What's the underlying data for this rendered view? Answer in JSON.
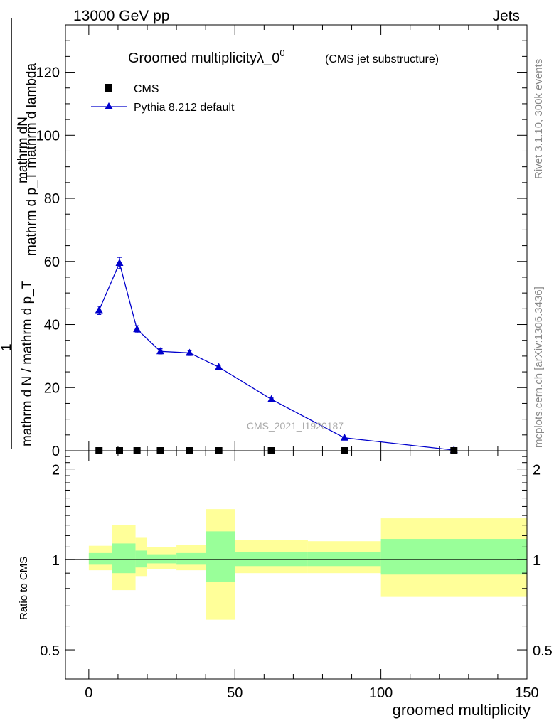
{
  "header": {
    "left": "13000 GeV pp",
    "right": "Jets"
  },
  "side_labels": {
    "rivet": "Rivet 3.1.10,  300k events",
    "mcplots": "mcplots.cern.ch [arXiv:1306.3436]"
  },
  "chart_data": [
    {
      "type": "line",
      "title": "Groomed multiplicityλ_0",
      "title_superscript": "0",
      "subtitle": "(CMS jet substructure)",
      "xlabel": "",
      "ylabel_numerator": "mathrm dN",
      "ylabel_mid": "mathrm d p_T mathrm d lambda",
      "ylabel_left": "1",
      "ylabel_denominator": "mathrm d N / mathrm d p_T",
      "xlim": [
        -8,
        150
      ],
      "ylim": [
        0,
        135
      ],
      "yticks": [
        0,
        20,
        40,
        60,
        80,
        100,
        120
      ],
      "watermark": "CMS_2021_I1920187",
      "series": [
        {
          "name": "CMS",
          "marker": "square",
          "color": "#000000",
          "x": [
            3.5,
            10.5,
            16.5,
            24.5,
            34.5,
            44.5,
            62.5,
            87.5,
            125
          ],
          "y": [
            0,
            0,
            0,
            0,
            0,
            0,
            0,
            0,
            0
          ]
        },
        {
          "name": "Pythia 8.212 default",
          "marker": "triangle",
          "color": "#0000cc",
          "x": [
            3.5,
            10.5,
            16.5,
            24.5,
            34.5,
            44.5,
            62.5,
            87.5,
            125
          ],
          "y": [
            44.5,
            59.5,
            38.5,
            31.5,
            31.0,
            26.5,
            16.3,
            4.1,
            0.2
          ],
          "err": [
            1.3,
            1.8,
            1.1,
            0.8,
            0.8,
            0.6,
            0.4,
            0.2,
            0.1
          ]
        }
      ]
    },
    {
      "type": "area",
      "ylabel": "Ratio to CMS",
      "xlabel": "groomed multiplicity",
      "xlim": [
        -8,
        150
      ],
      "ylim": [
        0.4,
        2.3
      ],
      "xticks": [
        0,
        50,
        100,
        150
      ],
      "yticks": [
        0.5,
        1,
        2
      ],
      "bands": {
        "edges": [
          0,
          8,
          16,
          20,
          30,
          40,
          50,
          75,
          100,
          150
        ],
        "inner_lo": [
          0.96,
          0.9,
          0.94,
          0.97,
          0.96,
          0.84,
          0.95,
          0.95,
          0.89
        ],
        "inner_hi": [
          1.05,
          1.13,
          1.07,
          1.04,
          1.05,
          1.24,
          1.06,
          1.06,
          1.17
        ],
        "outer_lo": [
          0.92,
          0.79,
          0.88,
          0.93,
          0.92,
          0.63,
          0.9,
          0.9,
          0.75
        ],
        "outer_hi": [
          1.11,
          1.3,
          1.18,
          1.1,
          1.12,
          1.47,
          1.16,
          1.15,
          1.37
        ],
        "inner_color": "#99ff99",
        "outer_color": "#ffff99"
      }
    }
  ]
}
